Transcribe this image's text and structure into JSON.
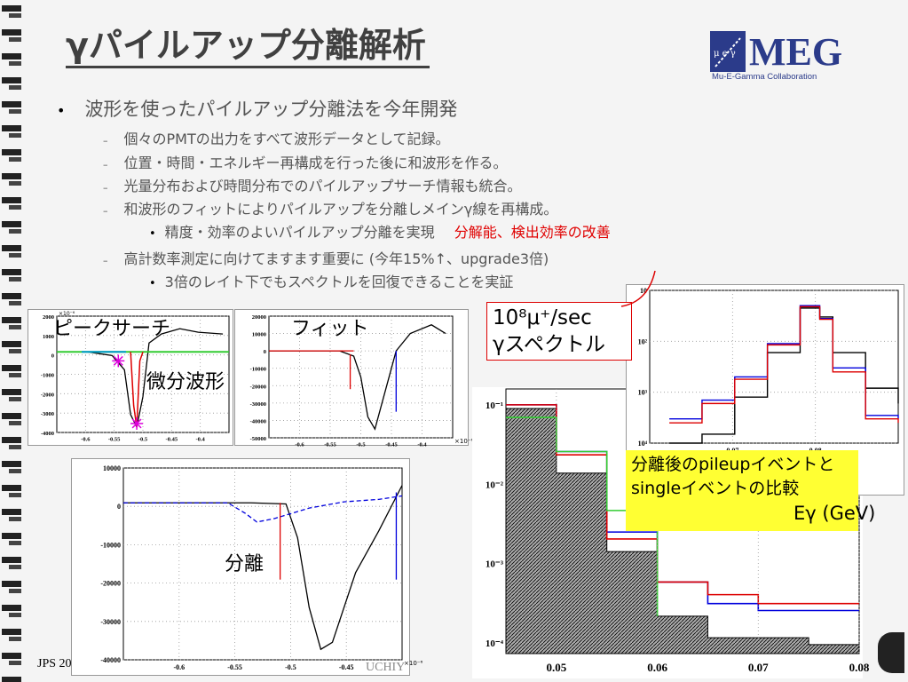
{
  "slide": {
    "title": "γパイルアップ分離解析",
    "logo": {
      "text": "MEG",
      "subtitle": "Mu-E-Gamma Collaboration",
      "emblem_letters": "μ e γ"
    },
    "bullets": [
      {
        "level": 1,
        "text": "波形を使ったパイルアップ分離法を今年開発"
      },
      {
        "level": 2,
        "text": "個々のPMTの出力をすべて波形データとして記録。"
      },
      {
        "level": 2,
        "text": "位置・時間・エネルギー再構成を行った後に和波形を作る。"
      },
      {
        "level": 2,
        "text": "光量分布および時間分布でのパイルアップサーチ情報も統合。"
      },
      {
        "level": 2,
        "text": "和波形のフィットによりパイルアップを分離しメインγ線を再構成。"
      },
      {
        "level": 3,
        "text": "精度・効率のよいパイルアップ分離を実現",
        "highlight": "分解能、検出効率の改善"
      },
      {
        "level": 2,
        "text": "高計数率測定に向けてますます重要に (今年15%↑、upgrade3倍)"
      },
      {
        "level": 3,
        "text": "3倍のレイト下でもスペクトルを回復できることを実証"
      }
    ],
    "dash": "–",
    "dot": "•",
    "labels": {
      "peak_search": "ピークサーチ",
      "fit": "フィット",
      "diff_waveform": "微分波形",
      "separation": "分離",
      "rate_box_line1": "10⁸μ⁺/sec",
      "rate_box_line2": "γスペクトル",
      "compare_box": "分離後のpileupイベントとsingleイベントの比較",
      "egamma_axis": "Eγ (GeV)"
    },
    "footer": {
      "left": "JPS 20",
      "center": "UCHIY"
    }
  },
  "chart_data": [
    {
      "type": "line",
      "name": "peak-search-waveform",
      "x": [
        -0.65,
        -0.6,
        -0.56,
        -0.54,
        -0.53,
        -0.52,
        -0.51,
        -0.5,
        -0.48,
        -0.45,
        -0.42,
        -0.38
      ],
      "y": [
        0,
        0,
        -200,
        -1000,
        -3500,
        -4200,
        -2500,
        500,
        1000,
        1300,
        1100,
        1000
      ],
      "xlim": [
        -0.65,
        -0.37
      ],
      "ylim": [
        -4500,
        2000
      ],
      "yticks": [
        "2000",
        "1000",
        "0",
        "-1000",
        "-2000",
        "-3000",
        "-4000"
      ],
      "xticks": [
        "-0.6",
        "-0.55",
        "-0.5",
        "-0.45",
        "-0.4"
      ],
      "y_exponent": "×10⁻⁶"
    },
    {
      "type": "line",
      "name": "fit-waveform",
      "x": [
        -0.65,
        -0.6,
        -0.55,
        -0.53,
        -0.52,
        -0.51,
        -0.5,
        -0.49,
        -0.47,
        -0.45,
        -0.42,
        -0.4
      ],
      "y": [
        0,
        0,
        0,
        -3000,
        -15000,
        -38000,
        -45000,
        -30000,
        0,
        10000,
        15000,
        10000
      ],
      "xlim": [
        -0.65,
        -0.39
      ],
      "ylim": [
        -50000,
        20000
      ],
      "yticks": [
        "20000",
        "10000",
        "0",
        "-10000",
        "-20000",
        "-30000",
        "-40000",
        "-50000"
      ],
      "xticks": [
        "-0.6",
        "-0.55",
        "-0.5",
        "-0.45",
        "-0.4"
      ],
      "x_exponent": "×10⁻⁶"
    },
    {
      "type": "line",
      "name": "separation-waveform",
      "series": [
        {
          "name": "",
          "color": "#000000",
          "x": [
            -0.66,
            -0.55,
            -0.52,
            -0.51,
            -0.5,
            -0.49,
            -0.48,
            -0.47,
            -0.46,
            -0.44,
            -0.42
          ],
          "y": [
            0,
            0,
            -300,
            -10000,
            -30000,
            -42000,
            -40000,
            -30000,
            -20000,
            -8000,
            5000
          ]
        },
        {
          "name": "",
          "color": "#0000dd",
          "dashed": true,
          "x": [
            -0.66,
            -0.57,
            -0.555,
            -0.545,
            -0.53,
            -0.5,
            -0.47,
            -0.44,
            -0.42
          ],
          "y": [
            0,
            0,
            -3000,
            -5500,
            -4500,
            -1500,
            300,
            1000,
            2000
          ]
        }
      ],
      "xlim": [
        -0.66,
        -0.42
      ],
      "ylim": [
        -45000,
        10000
      ],
      "yticks": [
        "10000",
        "0",
        "-10000",
        "-20000",
        "-30000",
        "-40000"
      ],
      "xticks": [
        "-0.6",
        "-0.55",
        "-0.5",
        "-0.45"
      ],
      "x_exponent": "×10⁻⁶"
    },
    {
      "type": "line",
      "name": "gamma-spectrum",
      "series": [
        {
          "name": "",
          "color": "#000000",
          "x": [
            0.045,
            0.05,
            0.055,
            0.06,
            0.065,
            0.068,
            0.07,
            0.075,
            0.08
          ],
          "y": [
            5,
            15,
            80,
            600,
            4500,
            3000,
            600,
            120,
            60
          ]
        },
        {
          "name": "",
          "color": "#0000dd",
          "x": [
            0.045,
            0.05,
            0.055,
            0.06,
            0.065,
            0.068,
            0.07,
            0.075,
            0.08
          ],
          "y": [
            30,
            70,
            200,
            900,
            5000,
            2800,
            300,
            35,
            30
          ]
        },
        {
          "name": "",
          "color": "#dd0000",
          "x": [
            0.045,
            0.05,
            0.055,
            0.06,
            0.065,
            0.068,
            0.07,
            0.075,
            0.08
          ],
          "y": [
            25,
            60,
            180,
            850,
            4800,
            2700,
            250,
            30,
            25
          ]
        }
      ],
      "xlim": [
        0.042,
        0.08
      ],
      "ylog": true,
      "ylim": [
        10,
        10000
      ],
      "yticks": [
        "10",
        "10²",
        "10³",
        "10⁴"
      ],
      "xticks": [
        "0.07",
        "0.08"
      ]
    },
    {
      "type": "area",
      "name": "compare-spectrum",
      "series": [
        {
          "name": "",
          "color": "#000000",
          "x": [
            0.045,
            0.05,
            0.055,
            0.06,
            0.065,
            0.07,
            0.075,
            0.08
          ],
          "y": [
            0.08,
            0.01,
            0.0008,
            0.0001,
            5e-05,
            5e-05,
            4e-05,
            5e-05
          ]
        },
        {
          "name": "",
          "color": "#0000dd",
          "x": [
            0.045,
            0.05,
            0.055,
            0.06,
            0.065,
            0.07,
            0.075,
            0.08
          ],
          "y": [
            0.09,
            0.02,
            0.0015,
            0.0003,
            0.00015,
            0.00012,
            0.00012,
            0.00012
          ]
        },
        {
          "name": "",
          "color": "#dd0000",
          "x": [
            0.045,
            0.05,
            0.055,
            0.06,
            0.065,
            0.07,
            0.075,
            0.08
          ],
          "y": [
            0.09,
            0.018,
            0.0012,
            0.0003,
            0.0002,
            0.00015,
            0.00015,
            0.00015
          ]
        },
        {
          "name": "",
          "color": "#33cc33",
          "x": [
            0.045,
            0.05,
            0.055,
            0.06
          ],
          "y": [
            0.06,
            0.02,
            0.003,
            0.0001
          ]
        }
      ],
      "xlim": [
        0.045,
        0.08
      ],
      "ylog": true,
      "ylim": [
        3e-05,
        0.15
      ],
      "yticks": [
        "10⁻¹",
        "10⁻²",
        "10⁻³",
        "10⁻⁴"
      ],
      "xticks": [
        "0.05",
        "0.06",
        "0.07",
        "0.08"
      ]
    }
  ]
}
